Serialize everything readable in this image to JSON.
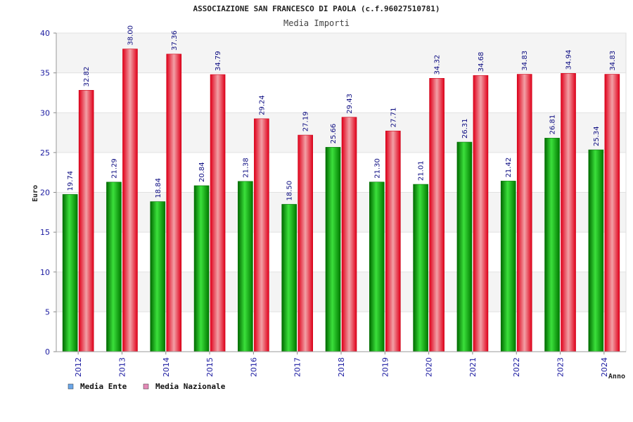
{
  "chart_data": {
    "type": "bar",
    "title": "ASSOCIAZIONE SAN FRANCESCO DI PAOLA (c.f.96027510781)",
    "subtitle": "Media Importi",
    "ylabel": "Euro",
    "xlabel": "Anno",
    "ylim": [
      0,
      40
    ],
    "yticks": [
      0,
      5,
      10,
      15,
      20,
      25,
      30,
      35,
      40
    ],
    "categories": [
      "2012",
      "2013",
      "2014",
      "2015",
      "2016",
      "2017",
      "2018",
      "2019",
      "2020",
      "2021",
      "2022",
      "2023",
      "2024"
    ],
    "series": [
      {
        "name": "Media Ente",
        "color": "#00b400",
        "legend_color": "#6aa6e8",
        "values": [
          19.74,
          21.29,
          18.84,
          20.84,
          21.38,
          18.5,
          25.66,
          21.3,
          21.01,
          26.31,
          21.42,
          26.81,
          25.34
        ],
        "labels": [
          "19.74",
          "21.29",
          "18.84",
          "20.84",
          "21.38",
          "18.50",
          "25.66",
          "21.30",
          "21.01",
          "26.31",
          "21.42",
          "26.81",
          "25.34"
        ]
      },
      {
        "name": "Media Nazionale",
        "color": "#ee1122",
        "legend_color": "#e58ab8",
        "values": [
          32.82,
          38.0,
          37.36,
          34.79,
          29.24,
          27.19,
          29.43,
          27.71,
          34.32,
          34.68,
          34.83,
          34.94,
          34.83
        ],
        "labels": [
          "32.82",
          "38.00",
          "37.36",
          "34.79",
          "29.24",
          "27.19",
          "29.43",
          "27.71",
          "34.32",
          "34.68",
          "34.83",
          "34.94",
          "34.83"
        ]
      }
    ],
    "grid": true,
    "legend_position": "bottom-left"
  }
}
